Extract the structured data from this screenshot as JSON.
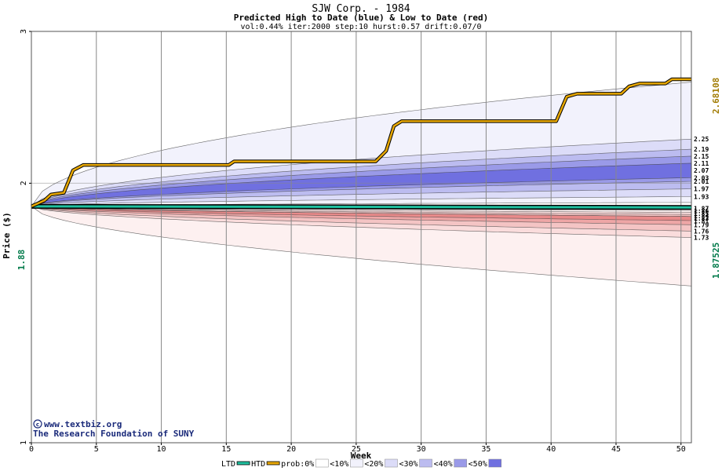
{
  "title": "SJW Corp. - 1984",
  "subtitle": "Predicted High to Date (blue) &  Low to Date (red)",
  "params": "vol:0.44% iter:2000 step:10 hurst:0.57 drift:0.07/0",
  "credit": {
    "site": "www.textbiz.org",
    "org": "The Research Foundation of SUNY"
  },
  "colors": {
    "high_path": "#e8a800",
    "ltd_line": "#20c0a0",
    "price_marker": "#007a4a",
    "final_marker": "#a07a00",
    "grid": "#888888"
  },
  "legend": [
    {
      "label": "LTD",
      "kind": "line",
      "color": "#20c0a0"
    },
    {
      "label": "HTD",
      "kind": "line",
      "color": "#e8a800"
    },
    {
      "label": "prob:0%",
      "kind": "swatch",
      "color": "#ffffff"
    },
    {
      "label": "<10%",
      "kind": "swatch",
      "color": "#f2f2fc"
    },
    {
      "label": "<20%",
      "kind": "swatch",
      "color": "#dcdcf8"
    },
    {
      "label": "<30%",
      "kind": "swatch",
      "color": "#bcbcf0"
    },
    {
      "label": "<40%",
      "kind": "swatch",
      "color": "#9a9ae8"
    },
    {
      "label": "<50%",
      "kind": "swatch",
      "color": "#7070e0"
    }
  ],
  "chart_data": {
    "type": "area",
    "xlabel": "Week",
    "ylabel": "Price ($)",
    "xlim": [
      0,
      50.8
    ],
    "ylim": [
      1,
      3
    ],
    "yscale": "log",
    "x_ticks": [
      0,
      5,
      10,
      15,
      20,
      25,
      30,
      35,
      40,
      45,
      50
    ],
    "y_ticks": [
      1,
      2,
      3
    ],
    "start_price": "1.88",
    "high_to_date_final": "2.68108",
    "low_to_date_final": "1.87525",
    "right_labels": [
      "2.25",
      "2.19",
      "2.15",
      "2.11",
      "2.07",
      "2.03",
      "2.01",
      "1.97",
      "1.93",
      "1.87",
      "1.86",
      "1.85",
      "1.84",
      "1.83",
      "1.81",
      "1.79",
      "1.76",
      "1.73"
    ],
    "high_bands": [
      {
        "prob": "<10%",
        "color": "#f2f2fc",
        "start": 1.88,
        "end_low": 1.9,
        "end_high": 2.62
      },
      {
        "prob": "<20%",
        "color": "#dcdcf8",
        "start": 1.88,
        "end_low": 1.93,
        "end_high": 2.25
      },
      {
        "prob": "<30%",
        "color": "#bcbcf0",
        "start": 1.88,
        "end_low": 1.97,
        "end_high": 2.19
      },
      {
        "prob": "<40%",
        "color": "#9a9ae8",
        "start": 1.88,
        "end_low": 2.01,
        "end_high": 2.15
      },
      {
        "prob": "<50%",
        "color": "#7070e0",
        "start": 1.88,
        "end_low": 2.03,
        "end_high": 2.11
      }
    ],
    "low_bands": [
      {
        "prob": "<10%",
        "color": "#fdf0f0",
        "start": 1.88,
        "end_low": 1.52,
        "end_high": 1.86
      },
      {
        "prob": "<20%",
        "color": "#fadcdc",
        "start": 1.88,
        "end_low": 1.73,
        "end_high": 1.85
      },
      {
        "prob": "<30%",
        "color": "#f4c4c4",
        "start": 1.88,
        "end_low": 1.76,
        "end_high": 1.84
      },
      {
        "prob": "<40%",
        "color": "#eea6a6",
        "start": 1.88,
        "end_low": 1.79,
        "end_high": 1.83
      },
      {
        "prob": "<50%",
        "color": "#e88a8a",
        "start": 1.88,
        "end_low": 1.81,
        "end_high": 1.83
      }
    ],
    "high_to_date_path": [
      {
        "x": 0,
        "y": 1.88
      },
      {
        "x": 1,
        "y": 1.91
      },
      {
        "x": 1.5,
        "y": 1.94
      },
      {
        "x": 2.5,
        "y": 1.95
      },
      {
        "x": 3.2,
        "y": 2.07
      },
      {
        "x": 4,
        "y": 2.1
      },
      {
        "x": 15.2,
        "y": 2.1
      },
      {
        "x": 15.6,
        "y": 2.12
      },
      {
        "x": 26.5,
        "y": 2.12
      },
      {
        "x": 27.3,
        "y": 2.18
      },
      {
        "x": 27.9,
        "y": 2.33
      },
      {
        "x": 28.5,
        "y": 2.36
      },
      {
        "x": 40.4,
        "y": 2.36
      },
      {
        "x": 41.2,
        "y": 2.52
      },
      {
        "x": 42,
        "y": 2.54
      },
      {
        "x": 45.4,
        "y": 2.54
      },
      {
        "x": 46,
        "y": 2.59
      },
      {
        "x": 46.8,
        "y": 2.61
      },
      {
        "x": 48.8,
        "y": 2.61
      },
      {
        "x": 49.3,
        "y": 2.64
      },
      {
        "x": 50.8,
        "y": 2.64
      }
    ],
    "low_to_date_path": [
      {
        "x": 0,
        "y": 1.88
      },
      {
        "x": 50.8,
        "y": 1.875
      }
    ]
  }
}
